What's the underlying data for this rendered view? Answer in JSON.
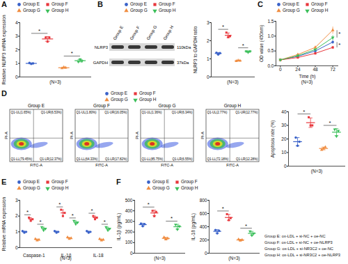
{
  "chart_data": [
    {
      "panel": "A",
      "type": "dot",
      "ylabel": "Relative NLRP3 mRNA expression",
      "caption": "(N=3)",
      "legend": "top",
      "categories": [
        null
      ],
      "ylim": [
        0,
        4
      ],
      "yticks": [
        0,
        1,
        2,
        3,
        4
      ],
      "series": [
        {
          "name": "Group E",
          "color": "#3a62c9",
          "marker": "circle",
          "values": [
            1.0
          ],
          "errors": [
            0.04
          ],
          "points": [
            [
              1.04,
              0.96,
              1.0
            ]
          ]
        },
        {
          "name": "Group F",
          "color": "#e8373c",
          "marker": "square",
          "values": [
            2.8
          ],
          "errors": [
            0.17
          ],
          "points": [
            [
              2.9,
              2.6,
              2.9
            ]
          ]
        },
        {
          "name": "Group G",
          "color": "#f08d41",
          "marker": "triangle",
          "values": [
            0.68
          ],
          "errors": [
            0.04
          ],
          "points": [
            [
              0.64,
              0.72,
              0.68
            ]
          ]
        },
        {
          "name": "Group H",
          "color": "#3bbf5a",
          "marker": "triangle-down",
          "values": [
            1.2
          ],
          "errors": [
            0.09
          ],
          "points": [
            [
              1.12,
              1.3,
              1.18
            ]
          ]
        }
      ],
      "annotations": [
        {
          "text": "*",
          "between": [
            "Group E",
            "Group F"
          ]
        },
        {
          "text": "*",
          "between": [
            "Group G",
            "Group H"
          ]
        }
      ]
    },
    {
      "type": "dot",
      "ylabel": "NLRP3 to GAPDH ratio",
      "caption": "(N=3)",
      "legend": "top",
      "categories": [
        null
      ],
      "ylim": [
        0,
        3
      ],
      "yticks": [
        0,
        1,
        2,
        3
      ],
      "series": [
        {
          "name": "Group E",
          "color": "#3a62c9",
          "marker": "circle",
          "values": [
            1.3
          ],
          "errors": [
            0.05
          ],
          "points": [
            [
              1.34,
              1.24,
              1.32
            ]
          ]
        },
        {
          "name": "Group F",
          "color": "#e8373c",
          "marker": "square",
          "values": [
            2.3
          ],
          "errors": [
            0.13
          ],
          "points": [
            [
              2.45,
              2.2,
              2.25
            ]
          ]
        },
        {
          "name": "Group G",
          "color": "#f08d41",
          "marker": "triangle",
          "values": [
            0.9
          ],
          "errors": [
            0.02
          ],
          "points": [
            [
              0.88,
              0.92,
              0.9
            ]
          ]
        },
        {
          "name": "Group H",
          "color": "#3bbf5a",
          "marker": "triangle-down",
          "values": [
            1.4
          ],
          "errors": [
            0.03
          ],
          "points": [
            [
              1.42,
              1.36,
              1.42
            ]
          ]
        }
      ],
      "annotations": [
        {
          "text": "*",
          "between": [
            "Group E",
            "Group F"
          ]
        },
        {
          "text": "*",
          "between": [
            "Group G",
            "Group H"
          ]
        }
      ]
    },
    {
      "panel": "C",
      "type": "line",
      "xlabel": "Time (h)",
      "ylabel": "OD value (450nm)",
      "caption": "(N=3)",
      "legend": "top",
      "x": [
        0,
        24,
        48,
        72
      ],
      "xlim": [
        -6,
        80
      ],
      "xticks": [
        0,
        24,
        48,
        72
      ],
      "ylim": [
        0,
        1.5
      ],
      "yticks": [
        {
          "value": 0,
          "label": "0.0"
        },
        0.5,
        {
          "value": 1,
          "label": "1.0"
        },
        1.5
      ],
      "series": [
        {
          "name": "Group E",
          "color": "#3a62c9",
          "marker": "circle",
          "values": [
            0.2,
            0.32,
            0.5,
            0.8
          ],
          "errors": [
            0.02,
            0.03,
            0.04,
            0.06
          ]
        },
        {
          "name": "Group F",
          "color": "#e8373c",
          "marker": "square",
          "values": [
            0.2,
            0.28,
            0.42,
            0.62
          ],
          "errors": [
            0.02,
            0.03,
            0.04,
            0.05
          ]
        },
        {
          "name": "Group G",
          "color": "#f08d41",
          "marker": "triangle",
          "values": [
            0.2,
            0.38,
            0.62,
            1.2
          ],
          "errors": [
            0.02,
            0.03,
            0.05,
            0.12
          ]
        },
        {
          "name": "Group H",
          "color": "#3bbf5a",
          "marker": "triangle-down",
          "values": [
            0.2,
            0.34,
            0.55,
            0.95
          ],
          "errors": [
            0.02,
            0.03,
            0.04,
            0.08
          ]
        }
      ],
      "annotations": [
        {
          "text": "*",
          "x": 72,
          "between": [
            "Group G",
            "Group H"
          ]
        },
        {
          "text": "*",
          "x": 72,
          "between": [
            "Group E",
            "Group F"
          ]
        }
      ]
    },
    {
      "type": "dot",
      "ylabel": "Apoptosis rate (%)",
      "caption": "(N=3)",
      "legend": "top",
      "categories": [
        null
      ],
      "ylim": [
        0,
        40
      ],
      "yticks": [
        0,
        10,
        20,
        30,
        40
      ],
      "series": [
        {
          "name": "Group E",
          "color": "#3a62c9",
          "marker": "circle",
          "values": [
            18
          ],
          "errors": [
            3
          ],
          "points": [
            [
              21,
              15,
              18
            ]
          ]
        },
        {
          "name": "Group F",
          "color": "#e8373c",
          "marker": "square",
          "values": [
            32
          ],
          "errors": [
            3.5
          ],
          "points": [
            [
              36,
              30,
              30
            ]
          ]
        },
        {
          "name": "Group G",
          "color": "#f08d41",
          "marker": "triangle",
          "values": [
            13
          ],
          "errors": [
            1
          ],
          "points": [
            [
              12,
              13,
              14
            ]
          ]
        },
        {
          "name": "Group H",
          "color": "#3bbf5a",
          "marker": "triangle-down",
          "values": [
            25
          ],
          "errors": [
            2.6
          ],
          "points": [
            [
              27,
              22,
              26
            ]
          ]
        }
      ],
      "annotations": [
        {
          "text": "*",
          "between": [
            "Group E",
            "Group F"
          ]
        },
        {
          "text": "*",
          "between": [
            "Group G",
            "Group H"
          ]
        }
      ]
    },
    {
      "panel": "E",
      "type": "dot",
      "ylabel": "Relative mRNA expression",
      "caption": "(N=3)",
      "legend": "top",
      "categories": [
        "Caspase-1",
        "IL-1β",
        "IL-18"
      ],
      "ylim": [
        0,
        3
      ],
      "yticks": [
        0,
        1,
        2,
        3
      ],
      "series": [
        {
          "name": "Group E",
          "color": "#3a62c9",
          "marker": "circle",
          "values": [
            1.0,
            1.0,
            1.0
          ],
          "errors": [
            0.05,
            0.05,
            0.05
          ],
          "points": [
            [
              1.05,
              0.95,
              1.0
            ],
            [
              1.05,
              0.95,
              1.0
            ],
            [
              1.05,
              0.95,
              1.0
            ]
          ]
        },
        {
          "name": "Group F",
          "color": "#e8373c",
          "marker": "square",
          "values": [
            1.8,
            2.2,
            1.9
          ],
          "errors": [
            0.1,
            0.2,
            0.1
          ],
          "points": [
            [
              1.9,
              1.7,
              1.8
            ],
            [
              2.4,
              2.0,
              2.2
            ],
            [
              2.0,
              1.8,
              1.9
            ]
          ]
        },
        {
          "name": "Group G",
          "color": "#f08d41",
          "marker": "triangle",
          "values": [
            0.5,
            0.6,
            0.5
          ],
          "errors": [
            0.05,
            0.05,
            0.05
          ],
          "points": [
            [
              0.55,
              0.45,
              0.5
            ],
            [
              0.65,
              0.55,
              0.6
            ],
            [
              0.55,
              0.45,
              0.5
            ]
          ]
        },
        {
          "name": "Group H",
          "color": "#3bbf5a",
          "marker": "triangle-down",
          "values": [
            1.2,
            1.6,
            1.2
          ],
          "errors": [
            0.1,
            0.1,
            0.1
          ],
          "points": [
            [
              1.3,
              1.1,
              1.2
            ],
            [
              1.7,
              1.5,
              1.6
            ],
            [
              1.3,
              1.1,
              1.2
            ]
          ]
        }
      ],
      "annotations": [
        {
          "text": "*",
          "category": "Caspase-1",
          "between": [
            "Group E",
            "Group F"
          ]
        },
        {
          "text": "*",
          "category": "Caspase-1",
          "between": [
            "Group G",
            "Group H"
          ]
        },
        {
          "text": "*",
          "category": "IL-1β",
          "between": [
            "Group E",
            "Group F"
          ]
        },
        {
          "text": "*",
          "category": "IL-1β",
          "between": [
            "Group G",
            "Group H"
          ]
        },
        {
          "text": "*",
          "category": "IL-18",
          "between": [
            "Group E",
            "Group F"
          ]
        },
        {
          "text": "*",
          "category": "IL-18",
          "between": [
            "Group G",
            "Group H"
          ]
        }
      ]
    },
    {
      "panel": "F",
      "type": "dot",
      "ylabel": "IL-1β (pg/mL)",
      "caption": "(N=3)",
      "legend": "top",
      "categories": [
        null
      ],
      "ylim": [
        0,
        500
      ],
      "yticks": [
        0,
        100,
        200,
        300,
        400,
        500
      ],
      "series": [
        {
          "name": "Group E",
          "color": "#3a62c9",
          "marker": "circle",
          "values": [
            270
          ],
          "errors": [
            13
          ],
          "points": [
            [
              280,
              255,
              275
            ]
          ]
        },
        {
          "name": "Group F",
          "color": "#e8373c",
          "marker": "square",
          "values": [
            380
          ],
          "errors": [
            26
          ],
          "points": [
            [
              400,
              350,
              390
            ]
          ]
        },
        {
          "name": "Group G",
          "color": "#f08d41",
          "marker": "triangle",
          "values": [
            140
          ],
          "errors": [
            10
          ],
          "points": [
            [
              150,
              130,
              140
            ]
          ]
        },
        {
          "name": "Group H",
          "color": "#3bbf5a",
          "marker": "triangle-down",
          "values": [
            250
          ],
          "errors": [
            23
          ],
          "points": [
            [
              270,
              225,
              255
            ]
          ]
        }
      ],
      "annotations": [
        {
          "text": "*",
          "between": [
            "Group E",
            "Group F"
          ]
        },
        {
          "text": "*",
          "between": [
            "Group G",
            "Group H"
          ]
        }
      ]
    },
    {
      "type": "dot",
      "ylabel": "IL-18 (pg/mL)",
      "caption": "(N=3)",
      "categories": [
        null
      ],
      "ylim": [
        0,
        800
      ],
      "yticks": [
        0,
        200,
        400,
        600,
        800
      ],
      "series": [
        {
          "name": "Group E",
          "color": "#3a62c9",
          "marker": "circle",
          "values": [
            330
          ],
          "errors": [
            26
          ],
          "points": [
            [
              350,
              300,
              340
            ]
          ]
        },
        {
          "name": "Group F",
          "color": "#e8373c",
          "marker": "square",
          "values": [
            540
          ],
          "errors": [
            46
          ],
          "points": [
            [
              590,
              500,
              530
            ]
          ]
        },
        {
          "name": "Group G",
          "color": "#f08d41",
          "marker": "triangle",
          "values": [
            200
          ],
          "errors": [
            10
          ],
          "points": [
            [
              210,
              190,
              200
            ]
          ]
        },
        {
          "name": "Group H",
          "color": "#3bbf5a",
          "marker": "triangle-down",
          "values": [
            300
          ],
          "errors": [
            30
          ],
          "points": [
            [
              330,
              270,
              300
            ]
          ]
        }
      ],
      "annotations": [
        {
          "text": "*",
          "between": [
            "Group E",
            "Group F"
          ]
        },
        {
          "text": "*",
          "between": [
            "Group G",
            "Group H"
          ]
        }
      ]
    }
  ],
  "blot": {
    "panel": "B",
    "lanes": [
      "Group E",
      "Group F",
      "Group G",
      "Group H"
    ],
    "rows": [
      {
        "label": "NLRP3",
        "size": "110kDa"
      },
      {
        "label": "GAPDH",
        "size": "37kDa"
      }
    ]
  },
  "flow": {
    "panel": "D",
    "xlabel": "FITC-A",
    "ylabel": "PI-A",
    "plots": [
      {
        "title": "Group E",
        "quadrants": {
          "UL": "Q1-UL(1.65%)",
          "UR": "Q1-UR(6.53%)",
          "LL": "Q1-LL(79.45%)",
          "LR": "Q1-LR(12.37%)"
        }
      },
      {
        "title": "Group F",
        "quadrants": {
          "UL": "Q1-UL(1.80%)",
          "UR": "Q1-UR(16.05%)",
          "LL": "Q1-LL(64.33%)",
          "LR": "Q1-LR(17.82%)"
        }
      },
      {
        "title": "Group G",
        "quadrants": {
          "UL": "Q1-UL(1.36%)",
          "UR": "Q1-UR(6.34%)",
          "LL": "Q1-LL(85.75%)",
          "LR": "Q1-LR(6.55%)"
        }
      },
      {
        "title": "Group H",
        "quadrants": {
          "UL": "Q1-UL(2.77%)",
          "UR": "Q1-UR(12.77%)",
          "LL": "Q1-LL(72.18%)",
          "LR": "Q1-LR(12.28%)"
        }
      }
    ]
  },
  "key": [
    "Group E: ox-LDL + si-NC + oe-NC",
    "Group F: ox-LDL + si-NC + oe-NLRP3",
    "Group G: ox-LDL + si-NR3C2 + oe-NC",
    "Group H: ox-LDL + si-NR3C2 + oe-NLRP3"
  ]
}
